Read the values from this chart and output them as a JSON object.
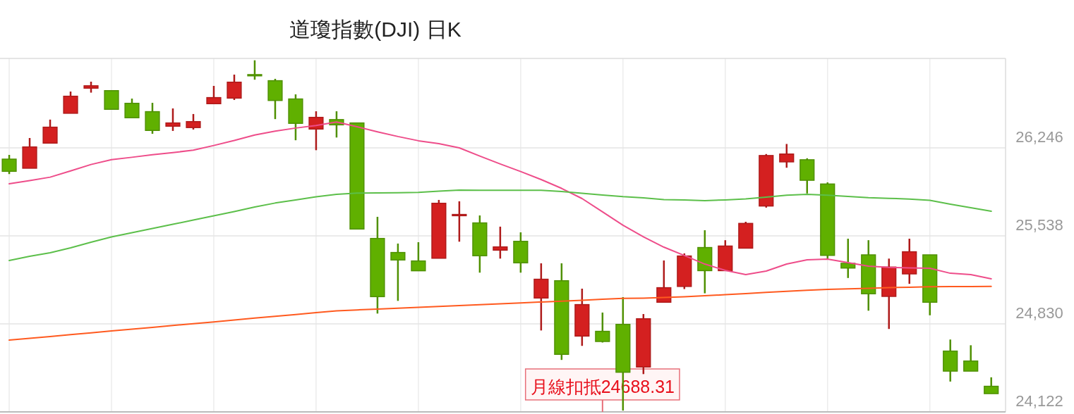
{
  "chart_data": {
    "type": "candlestick",
    "title": "道瓊指數(DJI) 日K",
    "categories": [
      null,
      null,
      null,
      null,
      null,
      null,
      null,
      null,
      null,
      null,
      null,
      null,
      null,
      null,
      null,
      null,
      null,
      null,
      null,
      null,
      null,
      null,
      null,
      null,
      null,
      null,
      null,
      null,
      null,
      null,
      null,
      null,
      null,
      null,
      null,
      null,
      null,
      null,
      null,
      null,
      null,
      null,
      null,
      null,
      null,
      null,
      null,
      null,
      null
    ],
    "ohlc": [
      [
        26155,
        26189,
        26035,
        26057
      ],
      [
        26082,
        26325,
        26082,
        26253
      ],
      [
        26284,
        26473,
        26284,
        26412
      ],
      [
        26524,
        26699,
        26524,
        26661
      ],
      [
        26726,
        26778,
        26690,
        26745
      ],
      [
        26706,
        26706,
        26556,
        26556
      ],
      [
        26604,
        26642,
        26488,
        26488
      ],
      [
        26537,
        26608,
        26359,
        26386
      ],
      [
        26420,
        26563,
        26382,
        26446
      ],
      [
        26409,
        26518,
        26393,
        26457
      ],
      [
        26601,
        26744,
        26601,
        26650
      ],
      [
        26646,
        26835,
        26631,
        26774
      ],
      [
        26835,
        26950,
        26794,
        26825
      ],
      [
        26786,
        26801,
        26477,
        26627
      ],
      [
        26639,
        26676,
        26307,
        26443
      ],
      [
        26397,
        26540,
        26227,
        26491
      ],
      [
        26473,
        26540,
        26329,
        26431
      ],
      [
        26446,
        26446,
        25593,
        25593
      ],
      [
        25517,
        25691,
        24913,
        25049
      ],
      [
        25404,
        25476,
        25015,
        25344
      ],
      [
        25336,
        25487,
        25257,
        25257
      ],
      [
        25358,
        25827,
        25358,
        25800
      ],
      [
        25700,
        25816,
        25491,
        25710
      ],
      [
        25642,
        25702,
        25242,
        25378
      ],
      [
        25423,
        25612,
        25355,
        25449
      ],
      [
        25494,
        25566,
        25242,
        25321
      ],
      [
        25038,
        25317,
        24777,
        25189
      ],
      [
        25177,
        25317,
        24540,
        24585
      ],
      [
        24732,
        25113,
        24653,
        24985
      ],
      [
        24770,
        24921,
        24680,
        24688.31
      ],
      [
        24826,
        25045,
        24133,
        24441
      ],
      [
        24483,
        24909,
        24426,
        24871
      ],
      [
        25004,
        25340,
        25004,
        25121
      ],
      [
        25131,
        25397,
        25110,
        25376
      ],
      [
        25444,
        25583,
        25076,
        25258
      ],
      [
        25258,
        25503,
        25258,
        25456
      ],
      [
        25439,
        25651,
        25439,
        25638
      ],
      [
        25778,
        26196,
        25765,
        26184
      ],
      [
        26133,
        26277,
        26086,
        26196
      ],
      [
        26150,
        26162,
        25879,
        25985
      ],
      [
        25955,
        25968,
        25347,
        25381
      ],
      [
        25317,
        25515,
        25199,
        25279
      ],
      [
        25385,
        25503,
        24936,
        25072
      ],
      [
        25051,
        25355,
        24789,
        25287
      ],
      [
        25232,
        25515,
        25152,
        25410
      ],
      [
        25385,
        25385,
        24899,
        25004
      ],
      [
        24611,
        24704,
        24366,
        24450
      ],
      [
        24531,
        24658,
        24450,
        24450
      ],
      [
        24328,
        24400,
        24269,
        24269
      ]
    ],
    "colors": [
      "#60b000",
      "#d42020",
      "#d42020",
      "#d42020",
      "#d42020",
      "#60b000",
      "#60b000",
      "#60b000",
      "#d42020",
      "#d42020",
      "#d42020",
      "#d42020",
      "#60b000",
      "#60b000",
      "#60b000",
      "#d42020",
      "#60b000",
      "#60b000",
      "#60b000",
      "#60b000",
      "#60b000",
      "#d42020",
      "#d42020",
      "#60b000",
      "#d42020",
      "#60b000",
      "#d42020",
      "#60b000",
      "#d42020",
      "#60b000",
      "#60b000",
      "#d42020",
      "#d42020",
      "#d42020",
      "#60b000",
      "#d42020",
      "#d42020",
      "#d42020",
      "#d42020",
      "#60b000",
      "#60b000",
      "#60b000",
      "#60b000",
      "#d42020",
      "#d42020",
      "#60b000",
      "#60b000",
      "#60b000",
      "#60b000"
    ],
    "series": [
      {
        "type": "line",
        "color": "#ee4d8a",
        "values": [
          25957,
          25983,
          26010,
          26060,
          26112,
          26151,
          26170,
          26190,
          26208,
          26227,
          26265,
          26305,
          26349,
          26380,
          26405,
          26425,
          26454,
          26416,
          26375,
          26337,
          26303,
          26280,
          26246,
          26180,
          26116,
          26055,
          25991,
          25920,
          25838,
          25731,
          25623,
          25530,
          25447,
          25380,
          25311,
          25260,
          25226,
          25255,
          25311,
          25345,
          25351,
          25323,
          25294,
          25285,
          25280,
          25277,
          25237,
          25226,
          25192
        ]
      },
      {
        "type": "line",
        "color": "#5cbf4a",
        "values": [
          25340,
          25374,
          25402,
          25442,
          25487,
          25529,
          25563,
          25597,
          25631,
          25665,
          25699,
          25733,
          25770,
          25802,
          25827,
          25852,
          25872,
          25882,
          25883,
          25885,
          25887,
          25897,
          25906,
          25904,
          25904,
          25904,
          25904,
          25895,
          25881,
          25867,
          25853,
          25844,
          25830,
          25827,
          25821,
          25827,
          25835,
          25849,
          25865,
          25872,
          25865,
          25855,
          25845,
          25840,
          25834,
          25824,
          25793,
          25764,
          25736
        ]
      },
      {
        "type": "line",
        "color": "#ff5a1f",
        "values": [
          24699,
          24714,
          24728,
          24743,
          24758,
          24773,
          24787,
          24802,
          24817,
          24831,
          24846,
          24861,
          24876,
          24891,
          24905,
          24920,
          24935,
          24942,
          24949,
          24956,
          24963,
          24970,
          24977,
          24984,
          24992,
          24999,
          25006,
          25013,
          25020,
          25028,
          25035,
          25037,
          25042,
          25048,
          25056,
          25065,
          25074,
          25084,
          25092,
          25100,
          25107,
          25112,
          25116,
          25121,
          25125,
          25129,
          25130,
          25130,
          25131
        ]
      }
    ],
    "ylim": [
      24122,
      26965
    ],
    "yticks": [
      {
        "value": 24122,
        "label": "24,122"
      },
      {
        "value": 24830,
        "label": "24,830"
      },
      {
        "value": 25538,
        "label": "25,538"
      },
      {
        "value": 26246,
        "label": "26,246"
      }
    ],
    "grid": true,
    "annotations": [
      {
        "text": "月線扣抵24688.31",
        "y": 24688.31
      }
    ]
  }
}
